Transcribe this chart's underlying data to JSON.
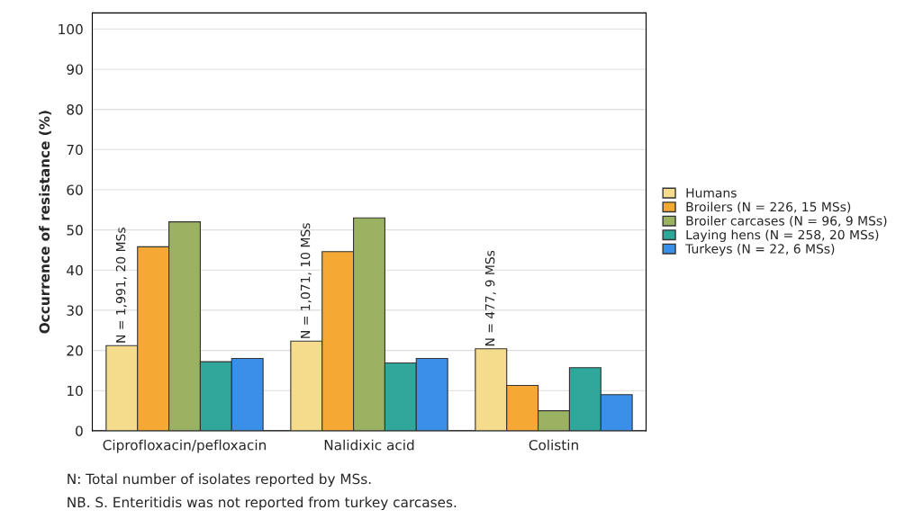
{
  "chart_data": {
    "type": "bar",
    "ylabel": "Occurrence of resistance (%)",
    "categories": [
      "Ciprofloxacin/pefloxacin",
      "Nalidixic acid",
      "Colistin"
    ],
    "series": [
      {
        "name": "Humans",
        "color": "#f5dc8c",
        "values": [
          21.2,
          22.3,
          20.4
        ]
      },
      {
        "name": "Broilers (N = 226, 15 MSs)",
        "color": "#f5a833",
        "values": [
          45.8,
          44.6,
          11.3
        ]
      },
      {
        "name": "Broiler carcases (N = 96, 9 MSs)",
        "color": "#9bb262",
        "values": [
          52,
          53,
          5
        ]
      },
      {
        "name": "Laying hens (N = 258, 20 MSs)",
        "color": "#2fa79b",
        "values": [
          17.2,
          16.9,
          15.7
        ]
      },
      {
        "name": "Turkeys (N = 22, 6 MSs)",
        "color": "#3a8fe8",
        "values": [
          18,
          18,
          9
        ]
      }
    ],
    "ylim": [
      0,
      104
    ],
    "yticks": [
      0,
      10,
      20,
      30,
      40,
      50,
      60,
      70,
      80,
      90,
      100
    ],
    "grid": "y",
    "legend": "right",
    "annotations": [
      "N = 1,991, 20 MSs",
      "N = 1,071, 10 MSs",
      "N = 477, 9 MSs",
      "N: Total number of isolates reported by MSs.",
      "NB. S. Enteritidis was not reported from turkey carcases."
    ]
  }
}
